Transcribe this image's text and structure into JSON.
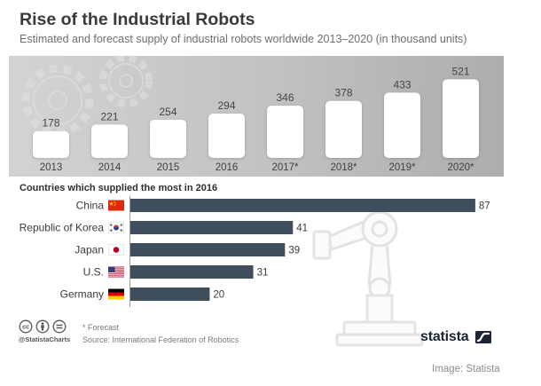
{
  "chart_data": [
    {
      "type": "bar",
      "title": "Rise of the Industrial Robots",
      "subtitle": "Estimated and forecast supply of industrial robots worldwide 2013–2020 (in thousand units)",
      "categories": [
        "2013",
        "2014",
        "2015",
        "2016",
        "2017*",
        "2018*",
        "2019*",
        "2020*"
      ],
      "values": [
        178,
        221,
        254,
        294,
        346,
        378,
        433,
        521
      ],
      "bar_color": "#ffffff",
      "grid": false
    },
    {
      "type": "bar",
      "orientation": "horizontal",
      "title": "Countries which supplied the most in 2016",
      "categories": [
        "China",
        "Republic of Korea",
        "Japan",
        "U.S.",
        "Germany"
      ],
      "values": [
        87,
        41,
        39,
        31,
        20
      ],
      "flags": [
        "china-flag-icon",
        "south-korea-flag-icon",
        "japan-flag-icon",
        "us-flag-icon",
        "germany-flag-icon"
      ],
      "bar_color": "#3e4e5c",
      "grid": false
    }
  ],
  "footer": {
    "license_icons": [
      "cc-icon",
      "by-icon",
      "nd-icon"
    ],
    "cc_text": "cc",
    "handle": "@StatistaCharts",
    "note": "* Forecast",
    "source": "Source: International Federation of Robotics",
    "logo_text": "statista",
    "logo_icon": "statista-logo-icon"
  },
  "caption": "Image: Statista"
}
